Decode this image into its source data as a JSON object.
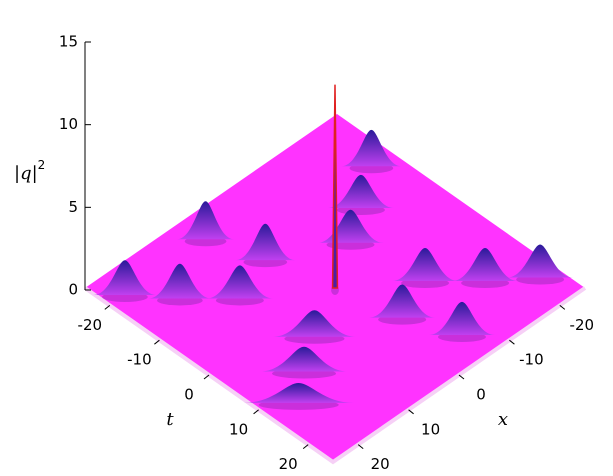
{
  "chart_data": {
    "type": "surface",
    "zlabel": "|q|",
    "zlabel_superscript": "2",
    "tlabel": "t",
    "xlabel": "x",
    "tlim": [
      -25,
      25
    ],
    "xlim": [
      -25,
      25
    ],
    "zlim": [
      0,
      15
    ],
    "tticks": [
      -20,
      -10,
      0,
      10,
      20
    ],
    "xticks": [
      -20,
      -10,
      0,
      10,
      20
    ],
    "zticks": [
      0,
      5,
      10,
      15
    ],
    "surface_color": "#ff33ff",
    "peak_color": "#4a1fa8",
    "spike_color": "#e02020",
    "peaks": {
      "t": [
        -20,
        -14,
        -8,
        -20,
        -11,
        8,
        14,
        19,
        11,
        19.5,
        -14,
        -9,
        -5,
        5,
        9,
        13,
        0
      ],
      "x": [
        22,
        17,
        11,
        6,
        3,
        -10,
        -16,
        -22,
        -2.5,
        -6,
        -21,
        -14,
        -8,
        9,
        15,
        20,
        0
      ],
      "z": [
        2.1,
        2.1,
        2,
        2.3,
        2.2,
        2,
        2,
        2,
        2,
        2,
        2.2,
        2,
        2,
        1.6,
        1.5,
        1.2,
        12.3
      ]
    }
  }
}
